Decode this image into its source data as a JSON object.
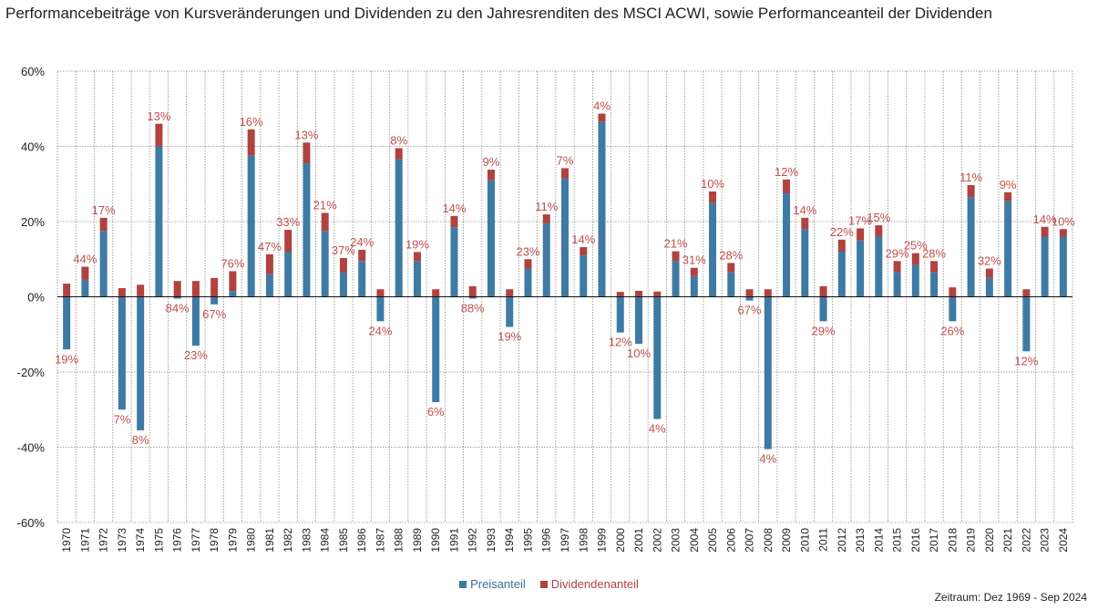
{
  "title": "Performancebeiträge von Kursveränderungen und Dividenden zu den Jahresrenditen des MSCI ACWI, sowie Performanceanteil der Dividenden",
  "footnote": "Zeitraum: Dez 1969 - Sep 2024",
  "colors": {
    "price": "#3e7aa3",
    "dividend": "#b0423f",
    "label": "#c0504d",
    "grid": "#8a8a8a"
  },
  "chart_data": {
    "type": "bar",
    "stacked": true,
    "categories": [
      "1970",
      "1971",
      "1972",
      "1973",
      "1974",
      "1975",
      "1976",
      "1977",
      "1978",
      "1979",
      "1980",
      "1981",
      "1982",
      "1983",
      "1984",
      "1985",
      "1986",
      "1987",
      "1988",
      "1989",
      "1990",
      "1991",
      "1992",
      "1993",
      "1994",
      "1995",
      "1996",
      "1997",
      "1998",
      "1999",
      "2000",
      "2001",
      "2002",
      "2003",
      "2004",
      "2005",
      "2006",
      "2007",
      "2008",
      "2009",
      "2010",
      "2011",
      "2012",
      "2013",
      "2014",
      "2015",
      "2016",
      "2017",
      "2018",
      "2019",
      "2020",
      "2021",
      "2022",
      "2023",
      "2024"
    ],
    "series": [
      {
        "name": "Preisanteil",
        "values": [
          -14,
          4.5,
          17.5,
          -30,
          -35.5,
          40,
          -0.5,
          -13,
          -2,
          1.5,
          37.5,
          6,
          12,
          35.5,
          17.5,
          6.5,
          9.5,
          -6.5,
          36.5,
          9.5,
          -28,
          18.5,
          -0.5,
          31,
          -8,
          7.5,
          19.5,
          31.5,
          11,
          46.5,
          -9.5,
          -12.5,
          -32.5,
          9.5,
          5.5,
          25,
          6.5,
          -1,
          -40.5,
          27.5,
          18,
          -6.5,
          12,
          15,
          16,
          6.5,
          8.5,
          6.5,
          -6.5,
          26.5,
          5,
          25.5,
          -14.5,
          16,
          16
        ]
      },
      {
        "name": "Dividendenanteil",
        "values": [
          3.5,
          3.5,
          3.5,
          2.3,
          3.2,
          6,
          4.2,
          4.2,
          5,
          5.3,
          7,
          5.3,
          5.8,
          5.5,
          4.8,
          3.8,
          3,
          2,
          3,
          2.4,
          2,
          3,
          2.8,
          2.8,
          2,
          2.5,
          2.4,
          2.7,
          2.2,
          2.2,
          1.3,
          1.6,
          1.4,
          2.6,
          2.2,
          3,
          2.5,
          2,
          2,
          3.7,
          3,
          2.8,
          3.2,
          3.2,
          3,
          3,
          3.1,
          3,
          2.5,
          3.2,
          2.5,
          2.3,
          2,
          2.6,
          2
        ]
      }
    ],
    "labels": [
      "19%",
      "44%",
      "17%",
      "7%",
      "8%",
      "13%",
      "84%",
      "23%",
      "67%",
      "76%",
      "16%",
      "47%",
      "33%",
      "13%",
      "21%",
      "37%",
      "24%",
      "24%",
      "8%",
      "19%",
      "6%",
      "14%",
      "88%",
      "9%",
      "19%",
      "23%",
      "11%",
      "7%",
      "14%",
      "4%",
      "12%",
      "10%",
      "4%",
      "21%",
      "31%",
      "10%",
      "28%",
      "67%",
      "4%",
      "12%",
      "14%",
      "29%",
      "22%",
      "17%",
      "15%",
      "29%",
      "25%",
      "28%",
      "26%",
      "11%",
      "32%",
      "9%",
      "12%",
      "14%",
      "10%"
    ],
    "yaxis": {
      "min": -60,
      "max": 60,
      "ticks": [
        "-60%",
        "-40%",
        "-20%",
        "0%",
        "20%",
        "40%",
        "60%"
      ],
      "tick_values": [
        -60,
        -40,
        -20,
        0,
        20,
        40,
        60
      ]
    },
    "grid": true,
    "legend_position": "bottom-center"
  }
}
